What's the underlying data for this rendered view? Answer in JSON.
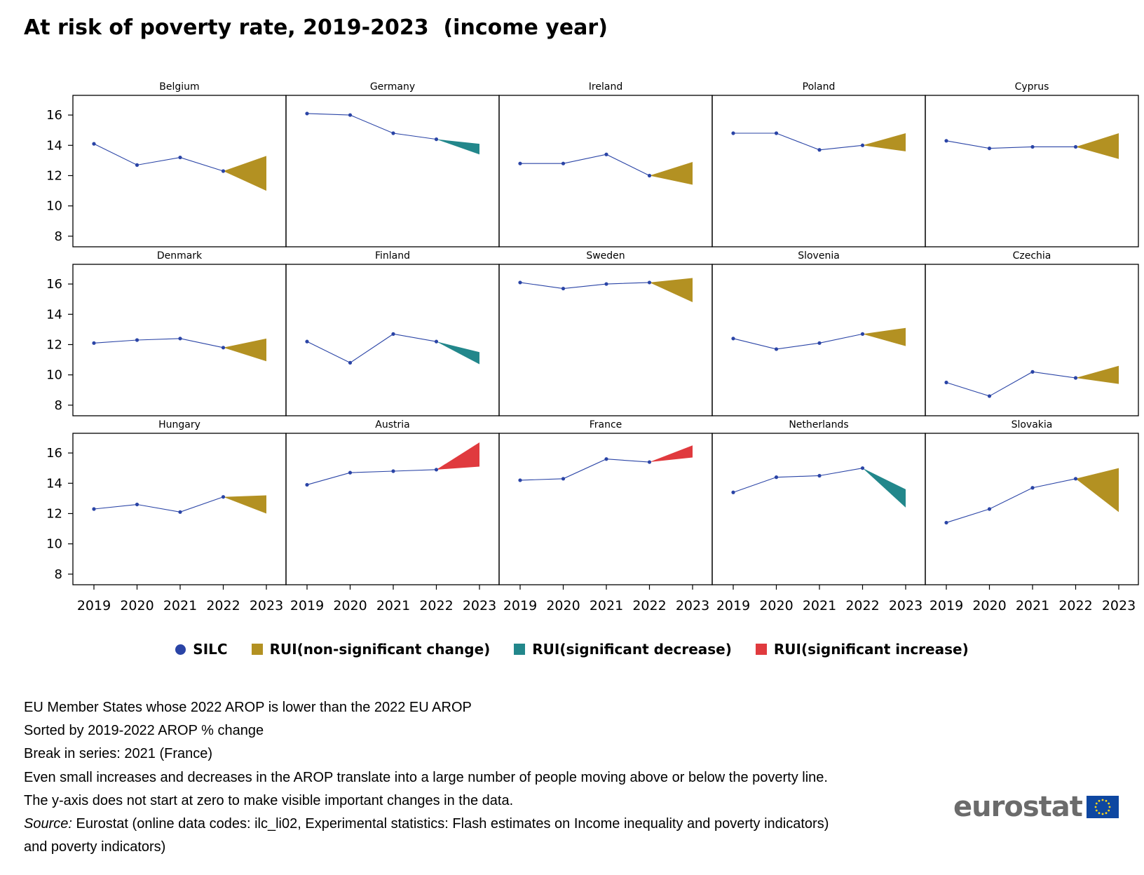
{
  "title": "At risk of poverty rate, 2019-2023  (income year)",
  "chart_data": {
    "type": "line",
    "layout": "small-multiples",
    "x": [
      "2019",
      "2020",
      "2021",
      "2022",
      "2023"
    ],
    "ylim": [
      7.3,
      17.3
    ],
    "yticks": [
      8,
      10,
      12,
      14,
      16
    ],
    "grid": false,
    "legend_position": "bottom",
    "colors": {
      "silc": "#2a44a6",
      "nonsig": "#b39122",
      "decrease": "#22878b",
      "increase": "#e03a3e"
    },
    "panels": [
      {
        "name": "Belgium",
        "silc": [
          14.1,
          12.7,
          13.2,
          12.3
        ],
        "rui": {
          "type": "nonsig",
          "low": 11.0,
          "high": 13.3
        }
      },
      {
        "name": "Germany",
        "silc": [
          16.1,
          16.0,
          14.8,
          14.4
        ],
        "rui": {
          "type": "decrease",
          "low": 13.4,
          "high": 14.1
        }
      },
      {
        "name": "Ireland",
        "silc": [
          12.8,
          12.8,
          13.4,
          12.0
        ],
        "rui": {
          "type": "nonsig",
          "low": 11.4,
          "high": 12.9
        }
      },
      {
        "name": "Poland",
        "silc": [
          14.8,
          14.8,
          13.7,
          14.0
        ],
        "rui": {
          "type": "nonsig",
          "low": 13.6,
          "high": 14.8
        }
      },
      {
        "name": "Cyprus",
        "silc": [
          14.3,
          13.8,
          13.9,
          13.9
        ],
        "rui": {
          "type": "nonsig",
          "low": 13.1,
          "high": 14.8
        }
      },
      {
        "name": "Denmark",
        "silc": [
          12.1,
          12.3,
          12.4,
          11.8
        ],
        "rui": {
          "type": "nonsig",
          "low": 10.9,
          "high": 12.4
        }
      },
      {
        "name": "Finland",
        "silc": [
          12.2,
          10.8,
          12.7,
          12.2
        ],
        "rui": {
          "type": "decrease",
          "low": 10.7,
          "high": 11.5
        }
      },
      {
        "name": "Sweden",
        "silc": [
          16.1,
          15.7,
          16.0,
          16.1
        ],
        "rui": {
          "type": "nonsig",
          "low": 14.8,
          "high": 16.4
        }
      },
      {
        "name": "Slovenia",
        "silc": [
          12.4,
          11.7,
          12.1,
          12.7
        ],
        "rui": {
          "type": "nonsig",
          "low": 11.9,
          "high": 13.1
        }
      },
      {
        "name": "Czechia",
        "silc": [
          9.5,
          8.6,
          10.2,
          9.8
        ],
        "rui": {
          "type": "nonsig",
          "low": 9.4,
          "high": 10.6
        }
      },
      {
        "name": "Hungary",
        "silc": [
          12.3,
          12.6,
          12.1,
          13.1
        ],
        "rui": {
          "type": "nonsig",
          "low": 12.0,
          "high": 13.2
        }
      },
      {
        "name": "Austria",
        "silc": [
          13.9,
          14.7,
          14.8,
          14.9
        ],
        "rui": {
          "type": "increase",
          "low": 15.1,
          "high": 16.7
        }
      },
      {
        "name": "France",
        "silc": [
          14.2,
          14.3,
          15.6,
          15.4
        ],
        "rui": {
          "type": "increase",
          "low": 15.7,
          "high": 16.5
        }
      },
      {
        "name": "Netherlands",
        "silc": [
          13.4,
          14.4,
          14.5,
          15.0
        ],
        "rui": {
          "type": "decrease",
          "low": 12.4,
          "high": 13.6
        }
      },
      {
        "name": "Slovakia",
        "silc": [
          11.4,
          12.3,
          13.7,
          14.3
        ],
        "rui": {
          "type": "nonsig",
          "low": 12.1,
          "high": 15.0
        }
      }
    ]
  },
  "legend": {
    "silc": "SILC",
    "nonsig": "RUI(non-significant change)",
    "decrease": "RUI(significant decrease)",
    "increase": "RUI(significant increase)"
  },
  "notes": [
    "EU Member States whose 2022 AROP is lower than the 2022 EU AROP",
    "Sorted by 2019-2022 AROP % change",
    "Break in series: 2021 (France)",
    "Even small increases and decreases in the AROP translate into a large number of people moving above or below the poverty line.",
    "The y-axis does not start at zero to make visible important changes in the data."
  ],
  "source": {
    "label": "Source:",
    "text": " Eurostat (online data codes: ilc_li02, Experimental statistics: Flash estimates on Income inequality and poverty indicators)",
    "continuation": "and poverty indicators)"
  },
  "logo": {
    "text": "eurostat"
  }
}
